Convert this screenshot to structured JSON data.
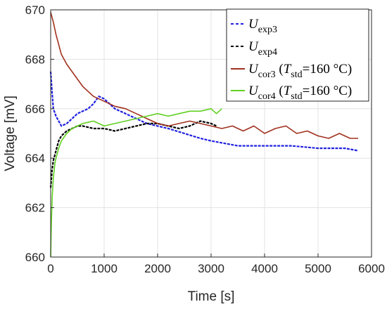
{
  "chart_data": {
    "type": "line",
    "xlabel": "Time [s]",
    "ylabel": "Voltage [mV]",
    "xlim": [
      0,
      6000
    ],
    "ylim": [
      660,
      670
    ],
    "xticks": [
      0,
      1000,
      2000,
      3000,
      4000,
      5000,
      6000
    ],
    "yticks": [
      660,
      662,
      664,
      666,
      668,
      670
    ],
    "grid": true,
    "legend_position": "top-right",
    "series": [
      {
        "name": "U_exp3",
        "legend": {
          "main": "U",
          "sub": "exp3",
          "rest": ""
        },
        "color": "#2020e0",
        "style": "dashed",
        "x": [
          0,
          25,
          50,
          100,
          150,
          200,
          300,
          400,
          500,
          600,
          700,
          800,
          900,
          1000,
          1100,
          1200,
          1400,
          1600,
          1800,
          2000,
          2200,
          2500,
          2800,
          3000,
          3500,
          4000,
          4500,
          5000,
          5500,
          5750
        ],
        "y": [
          667.5,
          666.7,
          666.0,
          665.7,
          665.5,
          665.3,
          665.4,
          665.6,
          665.8,
          665.9,
          666.0,
          666.2,
          666.5,
          666.4,
          666.2,
          666.0,
          665.8,
          665.6,
          665.4,
          665.3,
          665.2,
          665.0,
          664.8,
          664.7,
          664.5,
          664.5,
          664.5,
          664.4,
          664.4,
          664.3
        ]
      },
      {
        "name": "U_exp4",
        "legend": {
          "main": "U",
          "sub": "exp4",
          "rest": ""
        },
        "color": "#000000",
        "style": "dashed",
        "x": [
          0,
          25,
          50,
          100,
          150,
          200,
          300,
          400,
          500,
          600,
          800,
          1000,
          1200,
          1400,
          1600,
          1800,
          2000,
          2200,
          2400,
          2600,
          2800,
          3000,
          3100
        ],
        "y": [
          662.8,
          663.5,
          663.9,
          664.3,
          664.7,
          664.9,
          665.1,
          665.2,
          665.3,
          665.3,
          665.2,
          665.2,
          665.1,
          665.2,
          665.3,
          665.4,
          665.4,
          665.3,
          665.2,
          665.3,
          665.5,
          665.4,
          665.3
        ]
      },
      {
        "name": "U_cor3 (T_std=160 °C)",
        "legend": {
          "main": "U",
          "sub": "cor3",
          "rest": " (T",
          "sub2": "std",
          "rest2": "=160 °C)"
        },
        "color": "#a0301e",
        "style": "solid",
        "x": [
          0,
          50,
          100,
          150,
          200,
          300,
          400,
          500,
          600,
          700,
          800,
          900,
          1000,
          1200,
          1400,
          1600,
          1800,
          2000,
          2200,
          2400,
          2600,
          2800,
          3000,
          3200,
          3400,
          3600,
          3800,
          4000,
          4200,
          4400,
          4600,
          4800,
          5000,
          5200,
          5400,
          5600,
          5750
        ],
        "y": [
          669.9,
          669.5,
          669.0,
          668.6,
          668.2,
          667.8,
          667.5,
          667.2,
          666.9,
          666.7,
          666.5,
          666.4,
          666.3,
          666.1,
          666.0,
          665.8,
          665.6,
          665.4,
          665.3,
          665.4,
          665.5,
          665.4,
          665.3,
          665.2,
          665.3,
          665.1,
          665.3,
          665.0,
          665.2,
          665.3,
          665.0,
          665.1,
          664.9,
          664.8,
          665.0,
          664.8,
          664.8
        ]
      },
      {
        "name": "U_cor4 (T_std=160 °C)",
        "legend": {
          "main": "U",
          "sub": "cor4",
          "rest": " (T",
          "sub2": "std",
          "rest2": "=160 °C)"
        },
        "color": "#60d020",
        "style": "solid",
        "x": [
          0,
          15,
          30,
          50,
          80,
          100,
          150,
          200,
          300,
          400,
          500,
          600,
          800,
          1000,
          1200,
          1400,
          1600,
          1800,
          2000,
          2200,
          2400,
          2600,
          2800,
          3000,
          3100,
          3200
        ],
        "y": [
          660.0,
          661.5,
          662.5,
          663.2,
          663.8,
          664.0,
          664.4,
          664.7,
          665.0,
          665.2,
          665.3,
          665.4,
          665.5,
          665.3,
          665.4,
          665.5,
          665.6,
          665.7,
          665.8,
          665.7,
          665.8,
          665.9,
          665.9,
          666.0,
          665.8,
          666.0
        ]
      }
    ]
  }
}
